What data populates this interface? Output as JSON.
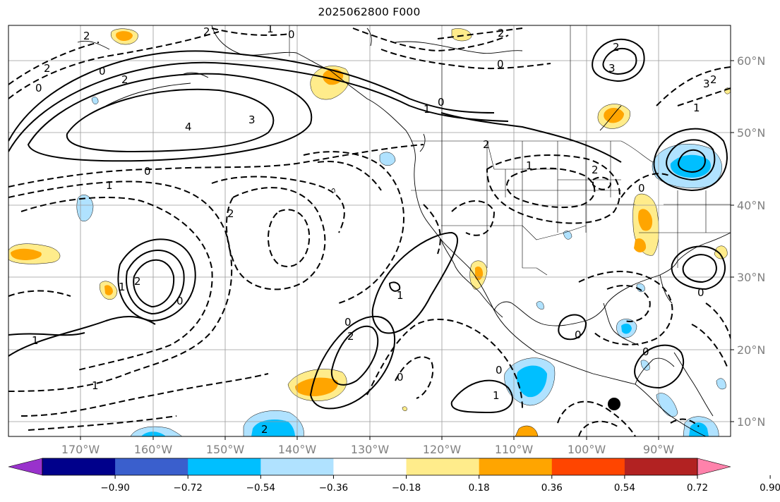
{
  "title": "2025062800 F000",
  "lat_labels": [
    "60°N",
    "50°N",
    "40°N",
    "30°N",
    "20°N",
    "10°N"
  ],
  "lon_labels": [
    "170°W",
    "160°W",
    "150°W",
    "140°W",
    "130°W",
    "120°W",
    "110°W",
    "100°W",
    "90°W"
  ],
  "colorbar": {
    "labels": [
      "−0.90",
      "−0.72",
      "−0.54",
      "−0.36",
      "−0.18",
      "0.18",
      "0.36",
      "0.54",
      "0.72",
      "0.90"
    ],
    "colors": [
      "#9932cc",
      "#00008b",
      "#3a5fcd",
      "#00bfff",
      "#b0e2ff",
      "#ffffff",
      "#ffec8b",
      "#ffa500",
      "#ff4500",
      "#b22222",
      "#ff82ab"
    ]
  },
  "contour_labels": [
    "2",
    "0",
    "2",
    "0",
    "2",
    "4",
    "3",
    "0",
    "1",
    "0",
    "2",
    "1",
    "0",
    "1",
    "2",
    "0",
    "2",
    "2",
    "3",
    "2",
    "2",
    "1",
    "1",
    "2",
    "0",
    "1",
    "0",
    "0",
    "1",
    "0",
    "1",
    "0",
    "0",
    "0",
    "2",
    "2",
    "1",
    "0",
    "3",
    "2",
    "1"
  ]
}
